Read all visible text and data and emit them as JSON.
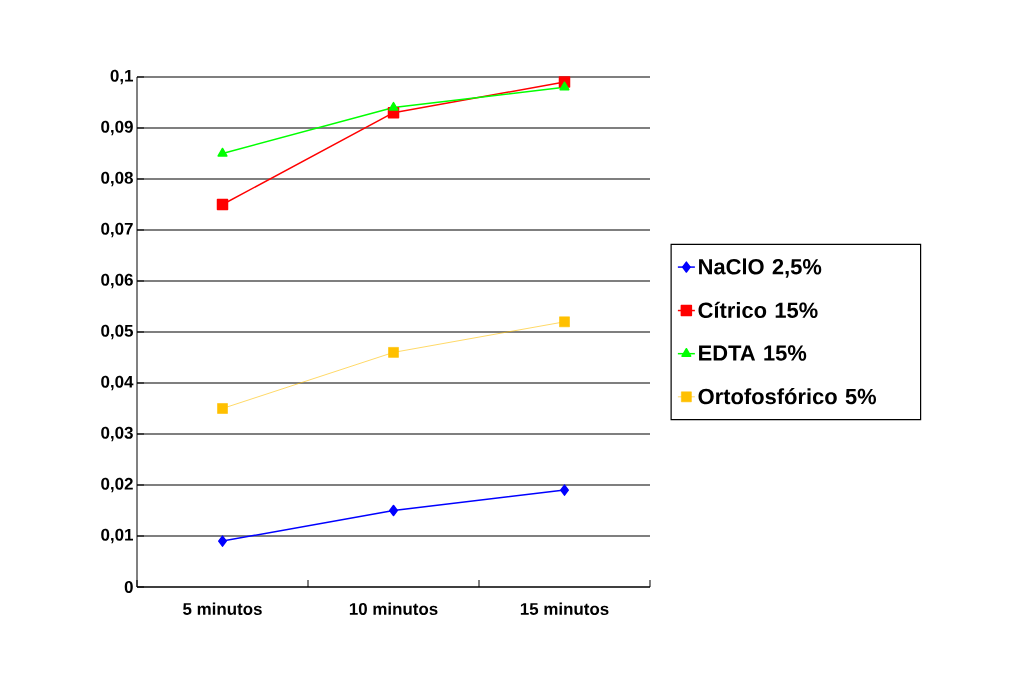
{
  "chart_data": {
    "type": "line",
    "categories": [
      "5 minutos",
      "10 minutos",
      "15 minutos"
    ],
    "series": [
      {
        "name": "NaClO 2,5%",
        "color": "#0000ff",
        "marker": "diamond",
        "values": [
          0.009,
          0.015,
          0.019
        ]
      },
      {
        "name": "Cítrico 15%",
        "color": "#ff0000",
        "marker": "square",
        "values": [
          0.075,
          0.093,
          0.099
        ]
      },
      {
        "name": "EDTA 15%",
        "color": "#00ff00",
        "marker": "triangle",
        "values": [
          0.085,
          0.094,
          0.098
        ]
      },
      {
        "name": "Ortofosfórico 5%",
        "color": "#ffc000",
        "marker": "square",
        "values": [
          0.035,
          0.046,
          0.052
        ]
      }
    ],
    "ylim": [
      0,
      0.1
    ],
    "yticks": [
      {
        "value": 0,
        "label": "0"
      },
      {
        "value": 0.01,
        "label": "0,01"
      },
      {
        "value": 0.02,
        "label": "0,02"
      },
      {
        "value": 0.03,
        "label": "0,03"
      },
      {
        "value": 0.04,
        "label": "0,04"
      },
      {
        "value": 0.05,
        "label": "0,05"
      },
      {
        "value": 0.06,
        "label": "0,06"
      },
      {
        "value": 0.07,
        "label": "0,07"
      },
      {
        "value": 0.08,
        "label": "0,08"
      },
      {
        "value": 0.09,
        "label": "0,09"
      },
      {
        "value": 0.1,
        "label": "0,1"
      }
    ],
    "grid": "y",
    "legend": "right",
    "line_style": "solid"
  }
}
